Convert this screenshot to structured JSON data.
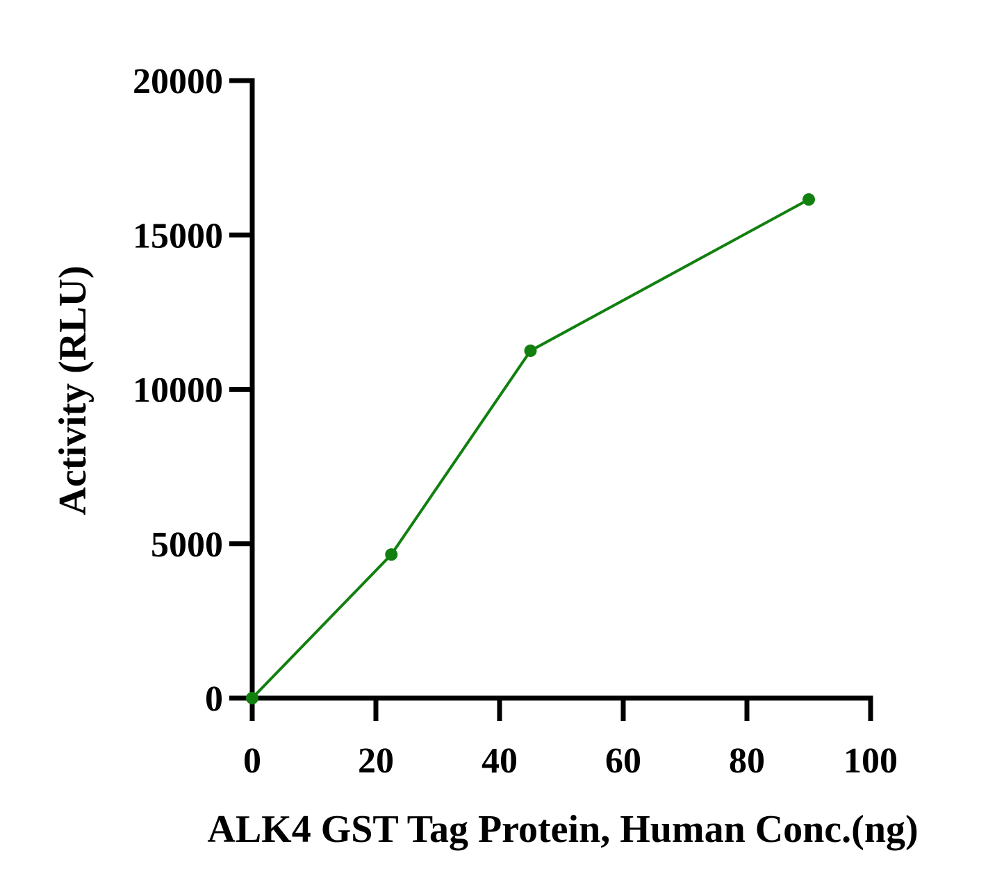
{
  "chart_data": {
    "type": "line",
    "title": "",
    "xlabel": "ALK4 GST Tag Protein, Human Conc.(ng)",
    "ylabel": "Activity (RLU)",
    "xlim": [
      0,
      100
    ],
    "ylim": [
      0,
      20000
    ],
    "x_ticks": [
      "0",
      "20",
      "40",
      "60",
      "80",
      "100"
    ],
    "y_ticks": [
      "0",
      "5000",
      "10000",
      "15000",
      "20000"
    ],
    "grid": false,
    "legend": "none",
    "series": [
      {
        "color": "#11800f",
        "x": [
          0,
          22.5,
          45,
          90
        ],
        "y": [
          0,
          4650,
          11250,
          16150
        ]
      }
    ]
  }
}
